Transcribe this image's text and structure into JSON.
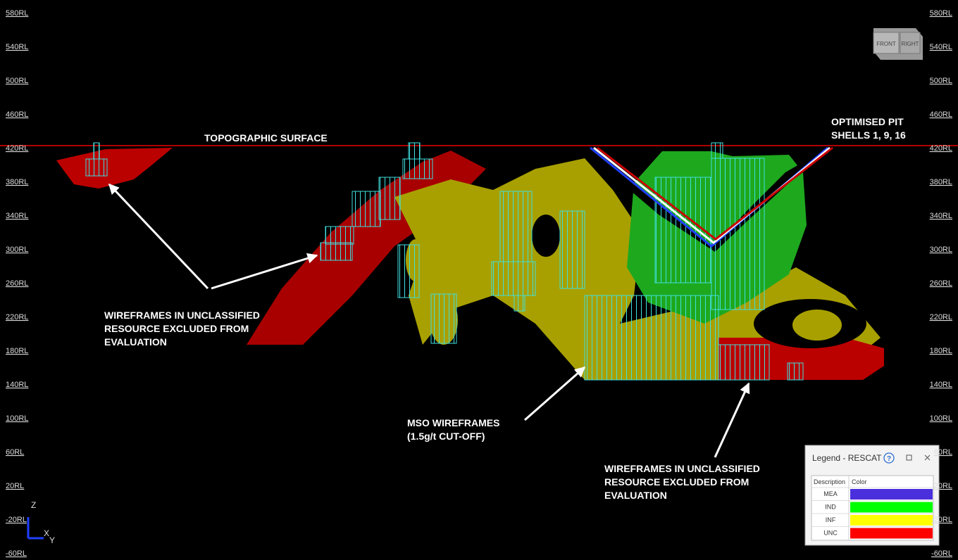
{
  "viewport": {
    "rl_labels_left": [
      "580RL",
      "540RL",
      "500RL",
      "460RL",
      "420RL",
      "380RL",
      "340RL",
      "300RL",
      "260RL",
      "220RL",
      "180RL",
      "140RL",
      "100RL",
      "60RL",
      "20RL",
      "-20RL",
      "-60RL"
    ],
    "rl_labels_right": [
      "580RL",
      "540RL",
      "500RL",
      "460RL",
      "420RL",
      "380RL",
      "340RL",
      "300RL",
      "260RL",
      "220RL",
      "180RL",
      "140RL",
      "100RL",
      "60RL",
      "20RL",
      "-20RL",
      "-60RL"
    ],
    "view_cube": {
      "front": "FRONT",
      "right": "RIGHT"
    },
    "axes": {
      "z": "Z",
      "x": "X",
      "y": "Y"
    },
    "annotations": [
      {
        "lines": [
          "TOPOGRAPHIC SURFACE"
        ]
      },
      {
        "lines": [
          "OPTIMISED PIT",
          "SHELLS 1, 9, 16"
        ]
      },
      {
        "lines": [
          "WIREFRAMES IN UNCLASSIFIED",
          "RESOURCE  EXCLUDED  FROM",
          "EVALUATION"
        ]
      },
      {
        "lines": [
          "MSO  WIREFRAMES",
          "(1.5g/t CUT-OFF)"
        ]
      },
      {
        "lines": [
          "WIREFRAMES IN UNCLASSIFIED",
          "RESOURCE  EXCLUDED  FROM",
          "EVALUATION"
        ]
      }
    ]
  },
  "legend": {
    "title": "Legend - RESCAT",
    "help": "?",
    "header": [
      "Description",
      "Color"
    ],
    "rows": [
      {
        "description": "MEA",
        "color": "#4a2fdc"
      },
      {
        "description": "IND",
        "color": "#00ff00"
      },
      {
        "description": "INF",
        "color": "#ffff00"
      },
      {
        "description": "UNC",
        "color": "#ff0000"
      }
    ]
  }
}
